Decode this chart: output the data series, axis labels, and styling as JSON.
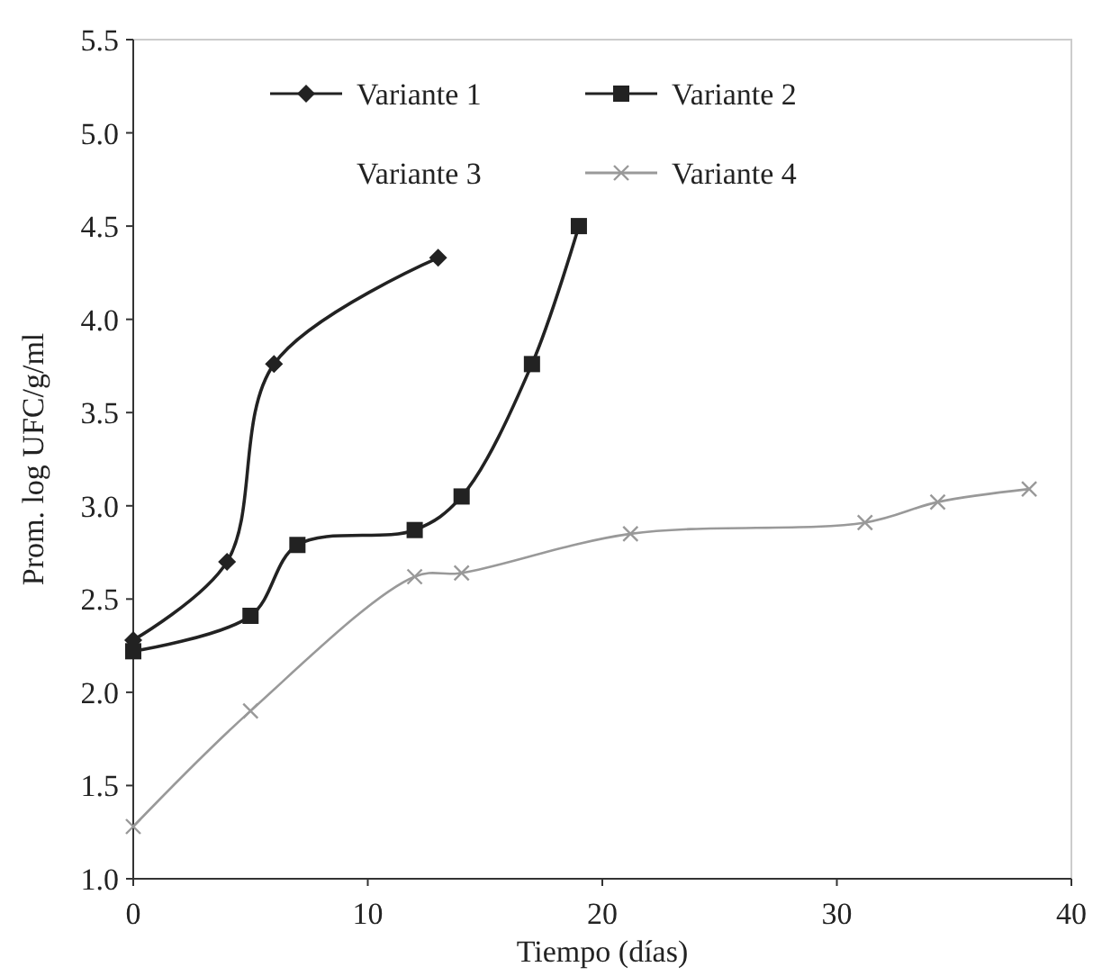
{
  "chart_data": {
    "type": "line",
    "xlabel": "Tiempo (días)",
    "ylabel": "Prom. log UFC/g/ml",
    "xlim": [
      0,
      40
    ],
    "xticks": [
      0,
      10,
      20,
      30,
      40
    ],
    "ylim": [
      1.0,
      5.5
    ],
    "yticks": [
      {
        "value": 1.0,
        "label": "1.0"
      },
      {
        "value": 1.5,
        "label": "1.5"
      },
      {
        "value": 2.0,
        "label": "2.0"
      },
      {
        "value": 2.5,
        "label": "2.5"
      },
      {
        "value": 3.0,
        "label": "3.0"
      },
      {
        "value": 3.5,
        "label": "3.5"
      },
      {
        "value": 4.0,
        "label": "4.0"
      },
      {
        "value": 4.5,
        "label": "4.5"
      },
      {
        "value": 5.0,
        "label": "5.0"
      },
      {
        "value": 5.5,
        "label": "5.5"
      }
    ],
    "grid": false,
    "legend": "top",
    "series": [
      {
        "name": "Variante 1",
        "color": "#222222",
        "marker": "diamond",
        "x": [
          0,
          4,
          6,
          13
        ],
        "values": [
          2.28,
          2.7,
          3.76,
          4.33
        ]
      },
      {
        "name": "Variante 2",
        "color": "#222222",
        "marker": "square",
        "x": [
          0,
          5,
          7,
          12,
          14,
          17,
          19
        ],
        "values": [
          2.22,
          2.41,
          2.79,
          2.87,
          3.05,
          3.76,
          4.5
        ]
      },
      {
        "name": "Variante 3",
        "values": [
          null
        ]
      },
      {
        "name": "Variante 4",
        "color": "#999999",
        "marker": "cross",
        "x": [
          0,
          5,
          12,
          14,
          21.2,
          31.2,
          34.3,
          38.2
        ],
        "values": [
          1.28,
          1.9,
          2.62,
          2.64,
          2.85,
          2.91,
          3.02,
          3.09
        ]
      }
    ]
  }
}
